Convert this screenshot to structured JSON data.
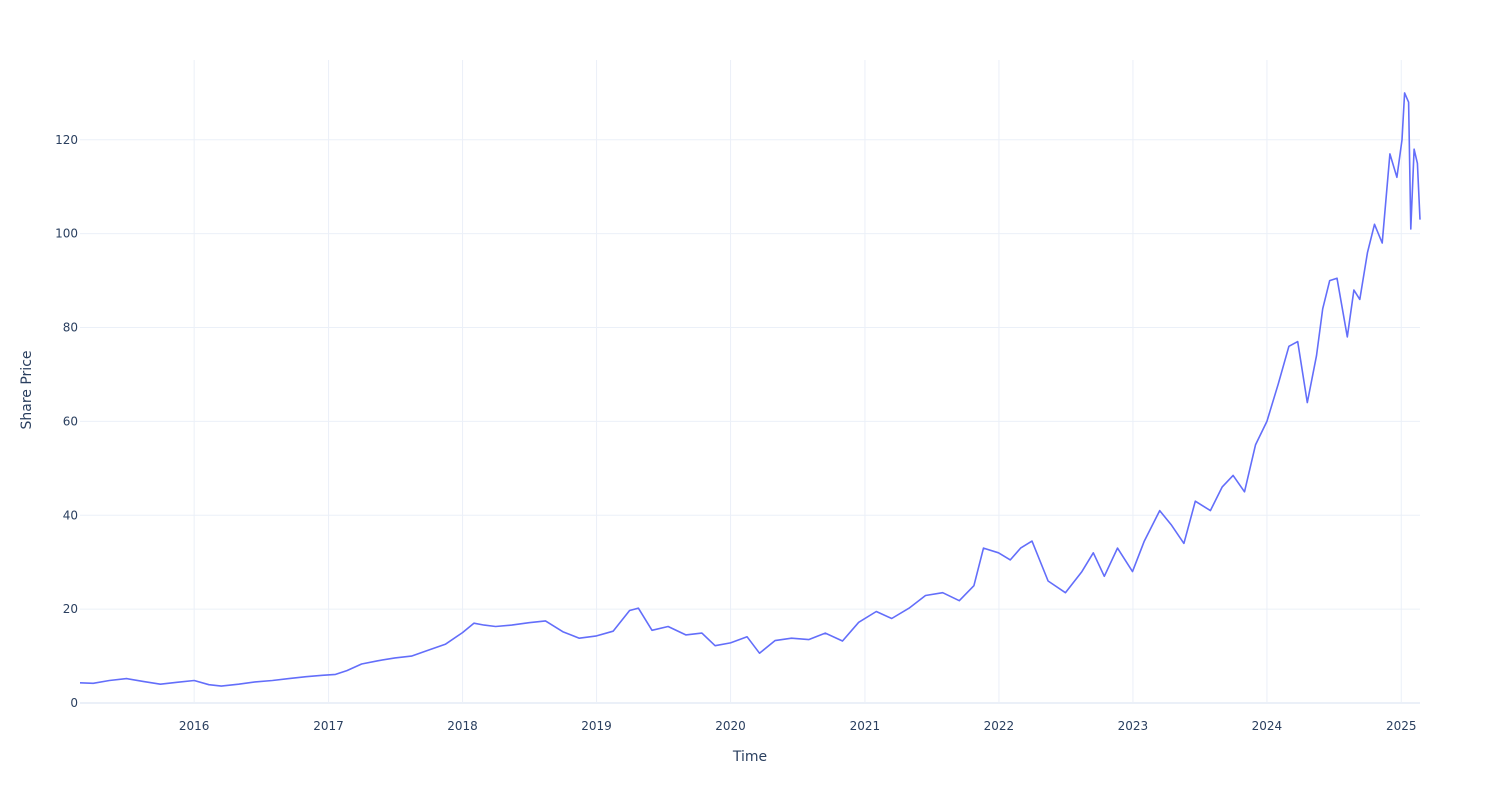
{
  "chart_data": {
    "type": "line",
    "title": "",
    "xlabel": "Time",
    "ylabel": "Share Price",
    "x_ticks": [
      "2016",
      "2017",
      "2018",
      "2019",
      "2020",
      "2021",
      "2022",
      "2023",
      "2024",
      "2025"
    ],
    "y_ticks": [
      0,
      20,
      40,
      60,
      80,
      100,
      120
    ],
    "xlim": [
      "2015-02-24",
      "2025-02-21"
    ],
    "ylim": [
      0,
      137
    ],
    "grid": true,
    "legend": "none",
    "colors": {
      "series": "#636efa",
      "grid": "#ebf0f8",
      "text": "#2a3f5f"
    },
    "series": [
      {
        "x": [
          "2015-02-24",
          "2015-04-01",
          "2015-05-15",
          "2015-07-01",
          "2015-08-15",
          "2015-10-01",
          "2015-11-15",
          "2016-01-01",
          "2016-02-10",
          "2016-03-15",
          "2016-05-01",
          "2016-06-15",
          "2016-08-01",
          "2016-09-15",
          "2016-11-01",
          "2016-12-15",
          "2017-01-20",
          "2017-02-20",
          "2017-04-01",
          "2017-05-15",
          "2017-07-01",
          "2017-08-15",
          "2017-10-01",
          "2017-11-15",
          "2018-01-01",
          "2018-02-01",
          "2018-03-01",
          "2018-04-01",
          "2018-05-15",
          "2018-07-01",
          "2018-08-15",
          "2018-10-01",
          "2018-11-15",
          "2019-01-01",
          "2019-02-15",
          "2019-04-01",
          "2019-04-25",
          "2019-06-01",
          "2019-07-15",
          "2019-09-01",
          "2019-10-15",
          "2019-11-20",
          "2020-01-01",
          "2020-02-15",
          "2020-03-20",
          "2020-05-01",
          "2020-06-15",
          "2020-08-01",
          "2020-09-15",
          "2020-11-01",
          "2020-12-15",
          "2021-02-01",
          "2021-03-15",
          "2021-05-01",
          "2021-06-15",
          "2021-08-01",
          "2021-09-15",
          "2021-10-25",
          "2021-11-20",
          "2021-12-31",
          "2022-02-01",
          "2022-03-01",
          "2022-04-01",
          "2022-05-15",
          "2022-07-01",
          "2022-08-15",
          "2022-09-15",
          "2022-10-15",
          "2022-11-20",
          "2022-12-31",
          "2023-02-01",
          "2023-03-15",
          "2023-04-15",
          "2023-05-20",
          "2023-06-20",
          "2023-07-31",
          "2023-09-01",
          "2023-10-01",
          "2023-11-01",
          "2023-12-01",
          "2024-01-01",
          "2024-02-01",
          "2024-03-01",
          "2024-03-25",
          "2024-04-20",
          "2024-05-15",
          "2024-06-01",
          "2024-06-20",
          "2024-07-10",
          "2024-08-07",
          "2024-08-25",
          "2024-09-10",
          "2024-10-01",
          "2024-10-20",
          "2024-11-10",
          "2024-12-01",
          "2024-12-20",
          "2025-01-03",
          "2025-01-10",
          "2025-01-21",
          "2025-01-27",
          "2025-02-05",
          "2025-02-14",
          "2025-02-21"
        ],
        "y": [
          4.3,
          4.2,
          4.8,
          5.2,
          4.6,
          4.0,
          4.4,
          4.8,
          3.9,
          3.6,
          4.0,
          4.5,
          4.8,
          5.2,
          5.6,
          5.9,
          6.1,
          6.9,
          8.3,
          9.0,
          9.6,
          10.0,
          11.3,
          12.5,
          15.0,
          17.0,
          16.6,
          16.3,
          16.6,
          17.1,
          17.5,
          15.2,
          13.8,
          14.3,
          15.3,
          19.7,
          20.2,
          15.5,
          16.3,
          14.5,
          14.9,
          12.2,
          12.8,
          14.1,
          10.6,
          13.3,
          13.8,
          13.5,
          14.9,
          13.2,
          17.2,
          19.5,
          18.0,
          20.2,
          22.9,
          23.5,
          21.8,
          25.0,
          33.0,
          32.0,
          30.5,
          33.0,
          34.5,
          26.0,
          23.5,
          28.0,
          32.0,
          27.0,
          33.0,
          28.0,
          34.5,
          41.0,
          38.0,
          34.0,
          43.0,
          41.0,
          46.0,
          48.5,
          45.0,
          55.0,
          60.0,
          68.0,
          76.0,
          77.0,
          64.0,
          74.0,
          84.0,
          90.0,
          90.5,
          78.0,
          88.0,
          86.0,
          96.0,
          102.0,
          98.0,
          117.0,
          112.0,
          120.0,
          130.0,
          128.0,
          101.0,
          118.0,
          115.0,
          103.0
        ]
      }
    ]
  }
}
